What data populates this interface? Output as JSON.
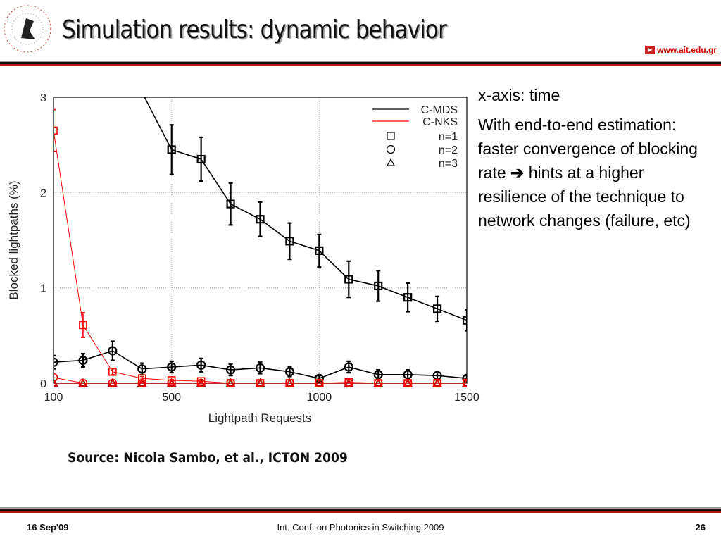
{
  "header": {
    "title": "Simulation results: dynamic behavior",
    "website": "www.ait.edu.gr",
    "logo_text": "ATHENS INFORMATION TECHNOLOGY"
  },
  "side_text": {
    "line1": "x-axis: time",
    "para_before_arrow": "With end-to-end estimation: faster convergence of blocking rate",
    "arrow_icon": "right-arrow-icon",
    "para_after_arrow": "hints at a higher resilience of the technique to network changes (failure, etc)"
  },
  "source": "Source: Nicola Sambo, et al., ICTON 2009",
  "footer": {
    "date": "16 Sep'09",
    "conference": "Int. Conf. on Photonics in Switching 2009",
    "page": "26"
  },
  "chart_data": {
    "type": "line",
    "title": "",
    "xlabel": "Lightpath Requests",
    "ylabel": "Blocked lightpaths (%)",
    "xlim": [
      100,
      1500
    ],
    "ylim": [
      0,
      3
    ],
    "xticks": [
      "100",
      "500",
      "1000",
      "1500"
    ],
    "xtick_values": [
      100,
      500,
      1000,
      1500
    ],
    "yticks": [
      "0",
      "1",
      "2",
      "3"
    ],
    "ytick_values": [
      0,
      1,
      2,
      3
    ],
    "grid": true,
    "legend_placement": "top-right",
    "legend": {
      "lines": [
        {
          "label": "C-MDS",
          "color": "#000000"
        },
        {
          "label": "C-NKS",
          "color": "#ff0000"
        }
      ],
      "markers": [
        {
          "label": "n=1",
          "marker": "square"
        },
        {
          "label": "n=2",
          "marker": "circle"
        },
        {
          "label": "n=3",
          "marker": "triangle"
        }
      ]
    },
    "x": [
      100,
      200,
      300,
      400,
      500,
      600,
      700,
      800,
      900,
      1000,
      1100,
      1200,
      1300,
      1400,
      1500
    ],
    "series": [
      {
        "name": "C-MDS n=1",
        "color": "#000000",
        "marker": "square",
        "width": 1.6,
        "values": [
          null,
          null,
          null,
          3.05,
          2.45,
          2.35,
          1.88,
          1.72,
          1.49,
          1.39,
          1.09,
          1.02,
          0.9,
          0.78,
          0.66
        ],
        "errors": [
          null,
          null,
          null,
          null,
          0.26,
          0.23,
          0.22,
          0.18,
          0.19,
          0.17,
          0.19,
          0.16,
          0.15,
          0.13,
          0.11
        ]
      },
      {
        "name": "C-MDS n=2",
        "color": "#000000",
        "marker": "circle",
        "width": 1.6,
        "values": [
          0.22,
          0.24,
          0.34,
          0.15,
          0.17,
          0.19,
          0.14,
          0.16,
          0.12,
          0.05,
          0.17,
          0.09,
          0.09,
          0.08,
          0.05
        ],
        "errors": [
          0.07,
          0.07,
          0.1,
          0.06,
          0.06,
          0.07,
          0.06,
          0.06,
          0.05,
          0.03,
          0.06,
          0.05,
          0.05,
          0.04,
          0.03
        ]
      },
      {
        "name": "C-MDS n=3",
        "color": "#000000",
        "marker": "triangle",
        "width": 1.6,
        "values": [
          0,
          0,
          0,
          0,
          0,
          0,
          0,
          0,
          0,
          0,
          0,
          0,
          0,
          0,
          0
        ],
        "errors": []
      },
      {
        "name": "C-NKS n=1",
        "color": "#ff0000",
        "marker": "square",
        "width": 1,
        "values": [
          2.65,
          0.61,
          0.12,
          0.05,
          0.03,
          0.02,
          0,
          0,
          0,
          0,
          0.01,
          0,
          0,
          0,
          0
        ],
        "errors": [
          0.22,
          0.13,
          0.03,
          0.02,
          0.01,
          0.01,
          null,
          null,
          null,
          null,
          null,
          null,
          null,
          null,
          null
        ]
      },
      {
        "name": "C-NKS n=2",
        "color": "#ff0000",
        "marker": "circle",
        "width": 1,
        "values": [
          0.06,
          0,
          0,
          0,
          0,
          0,
          0,
          0,
          0,
          0,
          0,
          0,
          0,
          0,
          0
        ],
        "errors": []
      },
      {
        "name": "C-NKS n=3",
        "color": "#ff0000",
        "marker": "triangle",
        "width": 1,
        "values": [
          0,
          0,
          0,
          0,
          0,
          0,
          0,
          0,
          0,
          0,
          0,
          0,
          0,
          0,
          0
        ],
        "errors": []
      }
    ]
  }
}
